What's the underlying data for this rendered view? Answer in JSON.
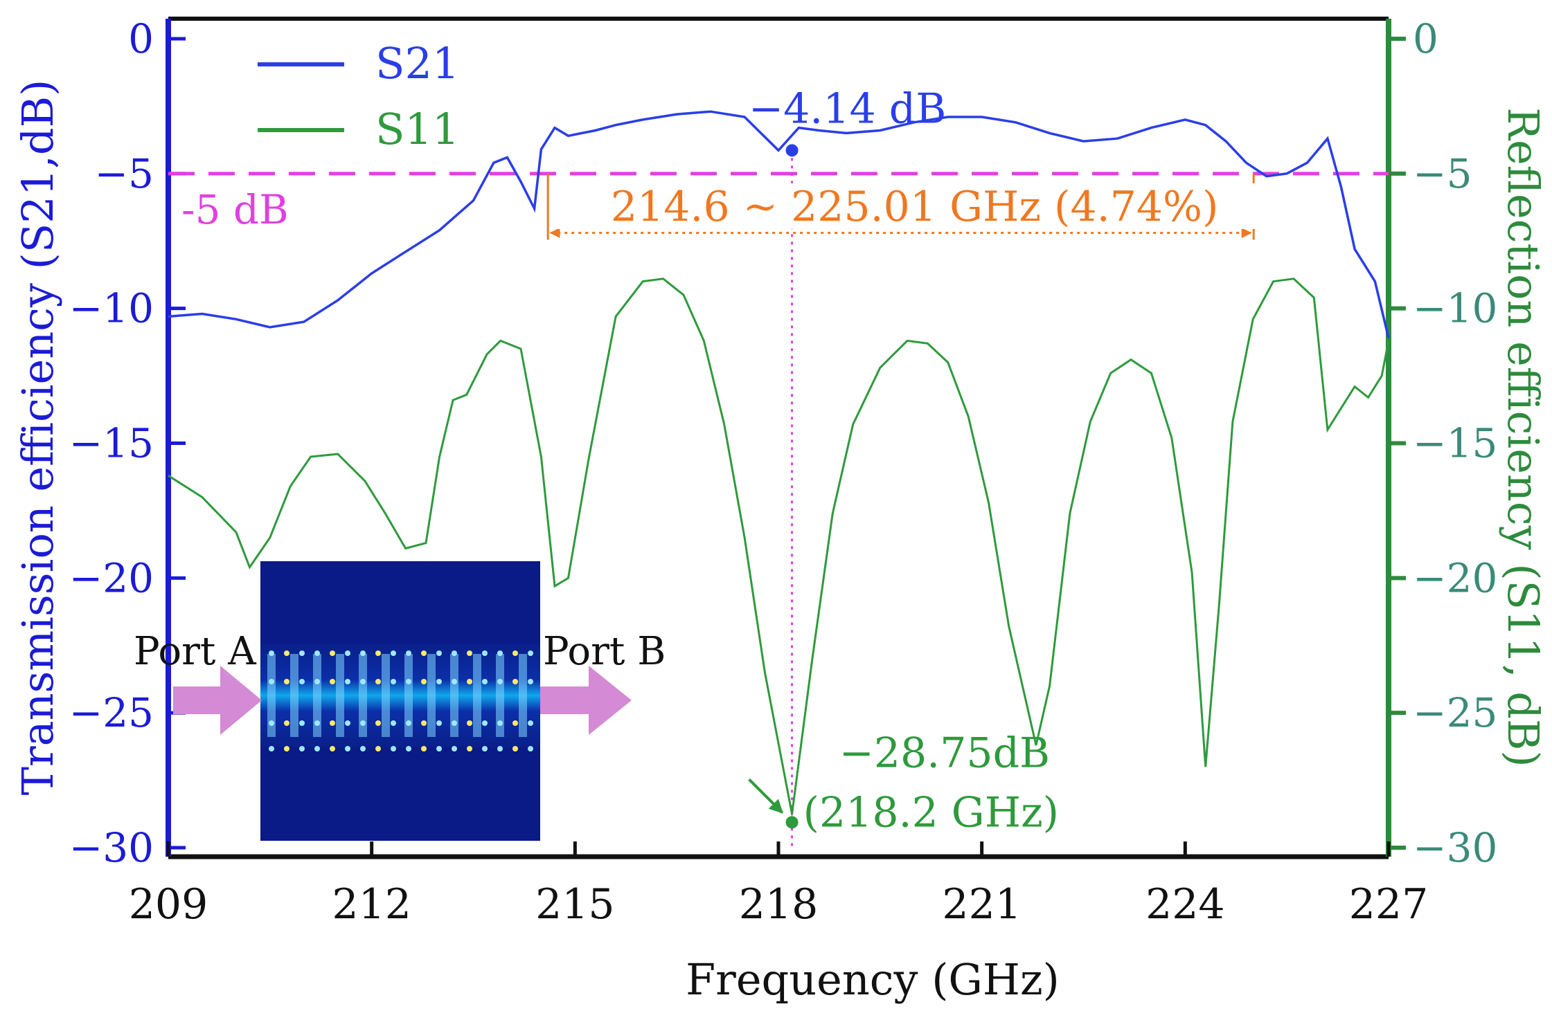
{
  "chart_data": {
    "type": "line",
    "title": "",
    "xlabel": "Frequency (GHz)",
    "ylabel_left": "Transmission efficiency (S21,dB)",
    "ylabel_right": "Reflection efficiency  (S11, dB)",
    "xlim": [
      209,
      227
    ],
    "ylim_left": [
      -30,
      0
    ],
    "ylim_right": [
      -30,
      0
    ],
    "x_ticks": [
      "209",
      "212",
      "215",
      "218",
      "221",
      "224",
      "227"
    ],
    "y_ticks_left": [
      "0",
      "−5",
      "−10",
      "−15",
      "−20",
      "−25",
      "−30"
    ],
    "y_ticks_right": [
      "0",
      "−5",
      "−10",
      "−15",
      "−20",
      "−25",
      "−30"
    ],
    "colors": {
      "s21": "#2a3ee8",
      "s11": "#2e9a3c",
      "reference": "#e040e0",
      "band": "#f07820",
      "left_axis": "#1b1bd6",
      "right_axis": "#2e8a3c"
    },
    "series": [
      {
        "name": "S21",
        "axis": "left",
        "x": [
          209,
          209.5,
          210,
          210.5,
          211,
          211.5,
          212,
          212.5,
          213,
          213.5,
          213.8,
          214.0,
          214.2,
          214.4,
          214.5,
          214.7,
          214.9,
          215.1,
          215.3,
          215.6,
          216,
          216.5,
          217,
          217.5,
          218,
          218.3,
          218.6,
          219,
          219.5,
          220,
          220.5,
          221,
          221.5,
          222,
          222.5,
          223,
          223.5,
          224,
          224.3,
          224.6,
          224.9,
          225.2,
          225.5,
          225.8,
          226.1,
          226.3,
          226.5,
          226.8,
          227
        ],
        "values": [
          -10.3,
          -10.2,
          -10.4,
          -10.7,
          -10.5,
          -9.7,
          -8.7,
          -7.9,
          -7.1,
          -6.0,
          -4.6,
          -4.4,
          -5.3,
          -6.3,
          -4.1,
          -3.3,
          -3.6,
          -3.5,
          -3.4,
          -3.2,
          -3.0,
          -2.8,
          -2.7,
          -2.9,
          -4.14,
          -3.3,
          -3.4,
          -3.5,
          -3.4,
          -3.1,
          -2.9,
          -2.9,
          -3.1,
          -3.5,
          -3.8,
          -3.7,
          -3.3,
          -3.0,
          -3.2,
          -3.8,
          -4.6,
          -5.1,
          -5.0,
          -4.6,
          -3.7,
          -5.5,
          -7.8,
          -9.0,
          -11.1
        ]
      },
      {
        "name": "S11",
        "axis": "right",
        "x": [
          209,
          209.5,
          210,
          210.2,
          210.5,
          210.8,
          211.1,
          211.5,
          211.9,
          212.2,
          212.5,
          212.8,
          213.0,
          213.2,
          213.4,
          213.7,
          213.9,
          214.2,
          214.5,
          214.7,
          214.9,
          215.2,
          215.6,
          216.0,
          216.3,
          216.6,
          216.9,
          217.2,
          217.5,
          217.8,
          218.2,
          218.5,
          218.8,
          219.1,
          219.5,
          219.9,
          220.2,
          220.5,
          220.8,
          221.1,
          221.4,
          221.8,
          222.0,
          222.3,
          222.6,
          222.9,
          223.2,
          223.5,
          223.8,
          224.1,
          224.3,
          224.5,
          224.7,
          225.0,
          225.3,
          225.6,
          225.9,
          226.1,
          226.3,
          226.5,
          226.7,
          226.9,
          227
        ],
        "values": [
          -16.2,
          -17.0,
          -18.3,
          -19.6,
          -18.5,
          -16.6,
          -15.5,
          -15.4,
          -16.4,
          -17.6,
          -18.9,
          -18.7,
          -15.5,
          -13.4,
          -13.2,
          -11.7,
          -11.2,
          -11.5,
          -15.5,
          -20.3,
          -20.0,
          -15.6,
          -10.3,
          -9.0,
          -8.9,
          -9.5,
          -11.2,
          -14.3,
          -18.5,
          -23.5,
          -28.75,
          -23.0,
          -17.6,
          -14.3,
          -12.2,
          -11.2,
          -11.3,
          -12.0,
          -14.0,
          -17.2,
          -21.8,
          -26.2,
          -24.0,
          -17.6,
          -14.2,
          -12.4,
          -11.9,
          -12.4,
          -14.8,
          -19.8,
          -27.0,
          -21.0,
          -14.2,
          -10.4,
          -9.0,
          -8.9,
          -9.6,
          -14.5,
          -13.7,
          -12.9,
          -13.3,
          -12.5,
          -11.2
        ]
      }
    ],
    "reference_line": {
      "value": -5,
      "label": "-5 dB"
    },
    "bandwidth": {
      "from": 214.6,
      "to": 225.01,
      "label": "214.6 ~ 225.01 GHz (4.74%)"
    },
    "annotations": [
      {
        "series": "S21",
        "x": 218.2,
        "y": -4.14,
        "label": "−4.14 dB"
      },
      {
        "series": "S11",
        "x": 218.2,
        "y": -28.75,
        "label": "−28.75dB",
        "label2": "(218.2 GHz)"
      }
    ],
    "legend": {
      "position": "top-left",
      "entries": [
        "S21",
        "S11"
      ]
    },
    "inset": {
      "description_labels": [
        "Port A",
        "Port B"
      ]
    }
  }
}
